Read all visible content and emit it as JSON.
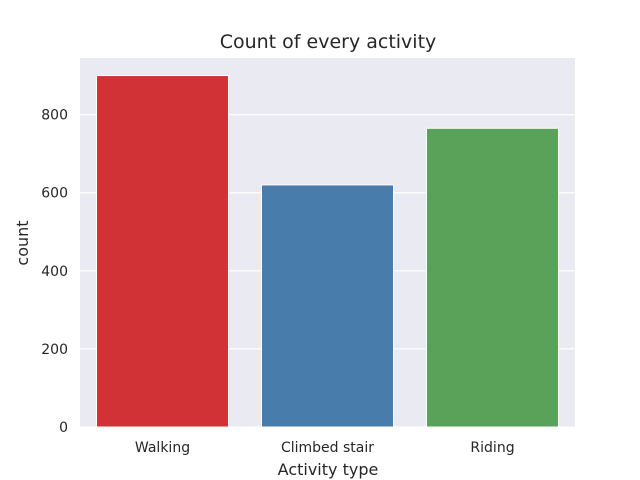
{
  "chart_data": {
    "type": "bar",
    "title": "Count of every activity",
    "xlabel": "Activity type",
    "ylabel": "count",
    "categories": [
      "Walking",
      "Climbed stair",
      "Riding"
    ],
    "values": [
      900,
      620,
      765
    ],
    "colors": [
      "#d03235",
      "#477cab",
      "#5aa25a"
    ],
    "yticks": [
      0,
      200,
      400,
      600,
      800
    ],
    "ylim": [
      0,
      945
    ],
    "grid": true,
    "background": "#eaeaf2"
  }
}
